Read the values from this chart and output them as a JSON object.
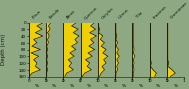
{
  "background_color": "#8da882",
  "panel_bg": "#8da882",
  "fill_color": "#f0d000",
  "line_color": "#111111",
  "depth_min": 0,
  "depth_max": 160,
  "depth_ticks": [
    0,
    20,
    40,
    60,
    80,
    100,
    120,
    140,
    160
  ],
  "n_panels": 9,
  "xlabel": "%",
  "ylabel": "Depth (cm)",
  "taxa_labels": [
    "Pinus",
    "Betula",
    "Alnus",
    "Quercus",
    "Corylus",
    "Ulmus",
    "Tilia",
    "Fraxinus",
    "Gramineae"
  ],
  "profiles": [
    [
      0.9,
      0.5,
      0.8,
      0.4,
      0.85,
      0.3,
      0.5,
      0.2,
      0.7,
      0.15,
      0.6,
      0.3,
      0.5,
      0.4,
      0.7,
      0.2,
      0.05
    ],
    [
      0.3,
      0.15,
      0.25,
      0.1,
      0.2,
      0.1,
      0.15,
      0.05,
      0.1,
      0.05,
      0.1,
      0.05,
      0.1,
      0.05,
      0.1,
      0.05,
      0.05
    ],
    [
      0.8,
      0.5,
      0.9,
      0.6,
      0.95,
      0.7,
      0.85,
      0.5,
      0.75,
      0.4,
      0.65,
      0.3,
      0.5,
      0.35,
      0.6,
      0.2,
      0.1
    ],
    [
      0.85,
      0.6,
      0.9,
      0.55,
      0.95,
      0.6,
      0.8,
      0.5,
      0.85,
      0.45,
      0.7,
      0.3,
      0.55,
      0.4,
      0.65,
      0.25,
      0.1
    ],
    [
      0.05,
      0.05,
      0.1,
      0.05,
      0.3,
      0.15,
      0.4,
      0.2,
      0.5,
      0.3,
      0.6,
      0.35,
      0.5,
      0.25,
      0.4,
      0.2,
      0.1
    ],
    [
      0.05,
      0.05,
      0.05,
      0.05,
      0.1,
      0.05,
      0.15,
      0.05,
      0.2,
      0.1,
      0.25,
      0.1,
      0.2,
      0.1,
      0.15,
      0.05,
      0.05
    ],
    [
      0.05,
      0.05,
      0.05,
      0.05,
      0.05,
      0.05,
      0.05,
      0.05,
      0.1,
      0.05,
      0.15,
      0.05,
      0.1,
      0.05,
      0.1,
      0.05,
      0.05
    ],
    [
      0.05,
      0.05,
      0.05,
      0.05,
      0.05,
      0.05,
      0.05,
      0.05,
      0.05,
      0.05,
      0.05,
      0.05,
      0.1,
      0.05,
      0.2,
      0.4,
      0.3
    ],
    [
      0.05,
      0.05,
      0.05,
      0.05,
      0.05,
      0.05,
      0.05,
      0.05,
      0.05,
      0.05,
      0.05,
      0.05,
      0.1,
      0.05,
      0.3,
      0.5,
      0.2
    ]
  ]
}
